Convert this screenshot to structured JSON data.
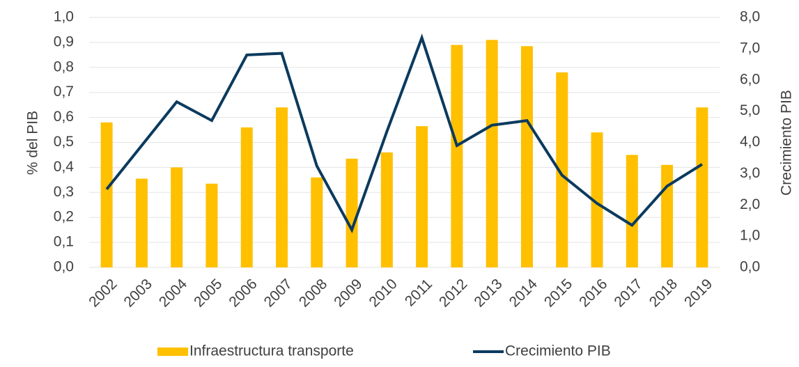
{
  "chart_data": {
    "type": "bar_line",
    "categories": [
      "2002",
      "2003",
      "2004",
      "2005",
      "2006",
      "2007",
      "2008",
      "2009",
      "2010",
      "2011",
      "2012",
      "2013",
      "2014",
      "2015",
      "2016",
      "2017",
      "2018",
      "2019"
    ],
    "series": [
      {
        "name": "Infraestructura transporte",
        "color": "#ffc000",
        "type": "bar",
        "axis": "y",
        "values": [
          0.58,
          0.355,
          0.4,
          0.335,
          0.56,
          0.64,
          0.36,
          0.435,
          0.46,
          0.565,
          0.89,
          0.91,
          0.885,
          0.78,
          0.54,
          0.45,
          0.41,
          0.64
        ]
      },
      {
        "name": "Crecimiento PIB",
        "color": "#0b3a5e",
        "type": "line",
        "axis": "y2",
        "values": [
          2.5,
          3.9,
          5.3,
          4.7,
          6.8,
          6.85,
          3.25,
          1.2,
          4.35,
          7.35,
          3.9,
          4.55,
          4.7,
          2.95,
          2.05,
          1.35,
          2.6,
          3.3
        ]
      }
    ],
    "ylabel": "% del PIB",
    "y2label": "Crecimiento PIB",
    "ylim": [
      0,
      1
    ],
    "yticks": [
      {
        "value": 0,
        "label": "0,0"
      },
      {
        "value": 0.1,
        "label": "0,1"
      },
      {
        "value": 0.2,
        "label": "0,2"
      },
      {
        "value": 0.3,
        "label": "0,3"
      },
      {
        "value": 0.4,
        "label": "0,4"
      },
      {
        "value": 0.5,
        "label": "0,5"
      },
      {
        "value": 0.6,
        "label": "0,6"
      },
      {
        "value": 0.7,
        "label": "0,7"
      },
      {
        "value": 0.8,
        "label": "0,8"
      },
      {
        "value": 0.9,
        "label": "0,9"
      },
      {
        "value": 1,
        "label": "1,0"
      }
    ],
    "y2lim": [
      0,
      8
    ],
    "y2ticks": [
      {
        "value": 0,
        "label": "0,0"
      },
      {
        "value": 1,
        "label": "1,0"
      },
      {
        "value": 2,
        "label": "2,0"
      },
      {
        "value": 3,
        "label": "3,0"
      },
      {
        "value": 4,
        "label": "4,0"
      },
      {
        "value": 5,
        "label": "5,0"
      },
      {
        "value": 6,
        "label": "6,0"
      },
      {
        "value": 7,
        "label": "7,0"
      },
      {
        "value": 8,
        "label": "8,0"
      }
    ],
    "grid": true,
    "legend": "bottom"
  }
}
